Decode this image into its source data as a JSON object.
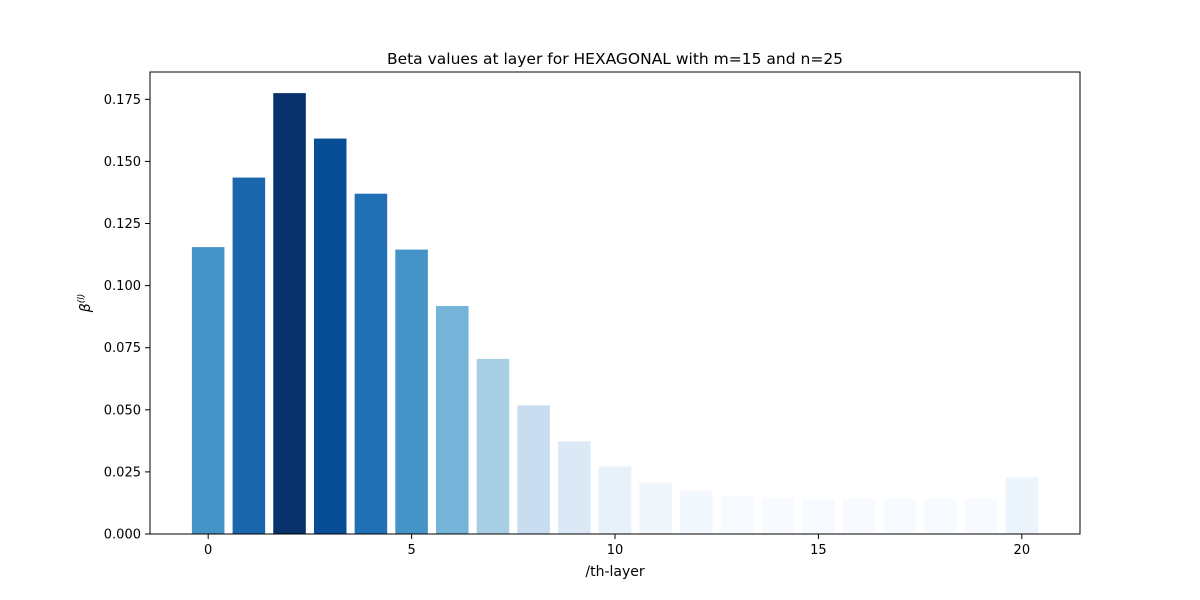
{
  "chart_data": {
    "type": "bar",
    "title": "Beta values at layer for HEXAGONAL with m=15 and n=25",
    "xlabel": "/th-layer",
    "ylabel": "β(l)",
    "ylabel_base": "β",
    "ylabel_sup": "(l)",
    "x": [
      0,
      1,
      2,
      3,
      4,
      5,
      6,
      7,
      8,
      9,
      10,
      11,
      12,
      13,
      14,
      15,
      16,
      17,
      18,
      19,
      20
    ],
    "values": [
      0.1155,
      0.1435,
      0.1775,
      0.1592,
      0.137,
      0.1145,
      0.0918,
      0.0705,
      0.0518,
      0.0373,
      0.0272,
      0.0208,
      0.0172,
      0.0152,
      0.0142,
      0.014,
      0.0142,
      0.0142,
      0.0142,
      0.0142,
      0.0228
    ],
    "xlim": [
      -1.43,
      21.43
    ],
    "ylim": [
      0,
      0.186
    ],
    "xticks": [
      0,
      5,
      10,
      15,
      20
    ],
    "xtick_labels": [
      "0",
      "5",
      "10",
      "15",
      "20"
    ],
    "yticks": [
      0,
      0.025,
      0.05,
      0.075,
      0.1,
      0.125,
      0.15,
      0.175
    ],
    "ytick_labels": [
      "0.000",
      "0.025",
      "0.050",
      "0.075",
      "0.100",
      "0.125",
      "0.150",
      "0.175"
    ],
    "colormap": "Blues",
    "grid": false,
    "legend": "none"
  }
}
